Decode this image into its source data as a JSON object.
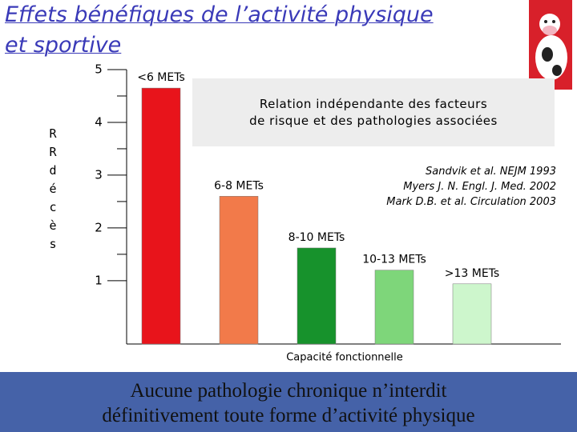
{
  "title": [
    "Effets bénéfiques de l’activité physique",
    "et sportive"
  ],
  "chart_data": {
    "type": "bar",
    "y_label": "RR décès",
    "x_label": "Capacité fonctionnelle",
    "categories": [
      "<6 METs",
      "6-8 METs",
      "8-10 METs",
      "10-13 METs",
      ">13 METs"
    ],
    "values": [
      4.65,
      2.6,
      1.62,
      1.2,
      0.94
    ],
    "colors": [
      "#e8141b",
      "#f27a4a",
      "#17922c",
      "#7ed67a",
      "#cdf6cc"
    ],
    "ylim": [
      -0.2,
      5
    ],
    "yticks": [
      5,
      4,
      3,
      2,
      1
    ],
    "annotation": [
      "Relation indépendante des facteurs",
      "de risque et des pathologies associées"
    ],
    "references": [
      "Sandvik et al. NEJM 1993",
      "Myers J. N. Engl. J. Med. 2002",
      "Mark D.B. et al. Circulation 2003"
    ]
  },
  "footer": [
    "Aucune pathologie chronique n’interdit",
    "définitivement toute forme d’activité physique"
  ]
}
